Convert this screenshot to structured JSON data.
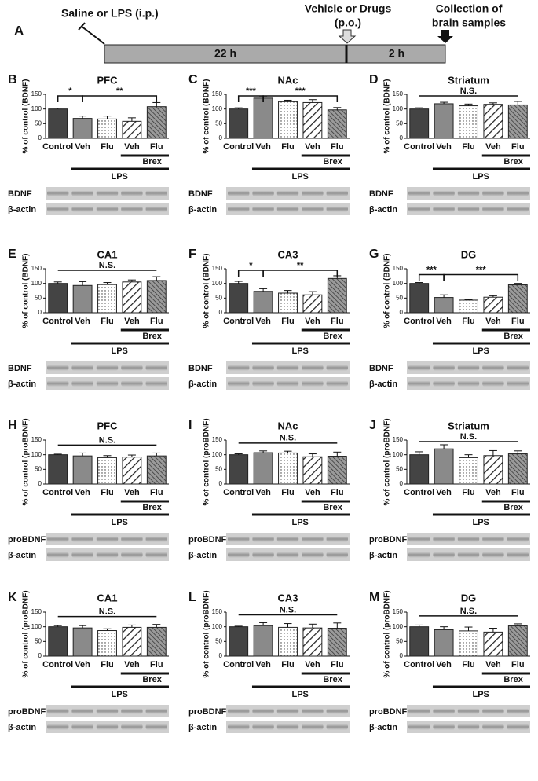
{
  "panel_a": {
    "panel": "A",
    "injection": "Saline or LPS (i.p.)",
    "drugs": [
      "Vehicle or Drugs",
      "(p.o.)"
    ],
    "collection": [
      "Collection of",
      "brain samples"
    ],
    "phase1": "22 h",
    "phase2": "2 h"
  },
  "chart_data": [
    {
      "type": "bar",
      "panel": "B",
      "title": "PFC",
      "y_label": "% of control (BDNF)",
      "categories": [
        "Control",
        "Veh",
        "Flu",
        "Veh",
        "Flu"
      ],
      "values": [
        100,
        68,
        66,
        58,
        108
      ],
      "errors": [
        3,
        8,
        10,
        12,
        14
      ],
      "ylim": [
        0,
        150
      ],
      "yticks": [
        0,
        50,
        100,
        150
      ],
      "annotations": [
        "*",
        "**"
      ],
      "groups": [
        "LPS",
        "Brex"
      ],
      "blots": [
        "BDNF",
        "β-actin"
      ],
      "bar_colors": [
        "#444444",
        "#8a8a8a",
        "#ffffff",
        "#ffffff",
        "#9a9a9a"
      ],
      "bar_patterns": [
        "solid",
        "solid",
        "dots",
        "hatch",
        "dense-hatch"
      ]
    },
    {
      "type": "bar",
      "panel": "C",
      "title": "NAc",
      "y_label": "% of control (BDNF)",
      "categories": [
        "Control",
        "Veh",
        "Flu",
        "Veh",
        "Flu"
      ],
      "values": [
        100,
        137,
        125,
        122,
        97
      ],
      "errors": [
        4,
        7,
        5,
        10,
        8
      ],
      "ylim": [
        0,
        150
      ],
      "yticks": [
        0,
        50,
        100,
        150
      ],
      "annotations": [
        "***",
        "***"
      ],
      "groups": [
        "LPS",
        "Brex"
      ],
      "blots": [
        "BDNF",
        "β-actin"
      ],
      "bar_colors": [
        "#444444",
        "#8a8a8a",
        "#ffffff",
        "#ffffff",
        "#9a9a9a"
      ],
      "bar_patterns": [
        "solid",
        "solid",
        "dots",
        "hatch",
        "dense-hatch"
      ]
    },
    {
      "type": "bar",
      "panel": "D",
      "title": "Striatum",
      "y_label": "% of control (BDNF)",
      "categories": [
        "Control",
        "Veh",
        "Flu",
        "Veh",
        "Flu"
      ],
      "values": [
        100,
        118,
        111,
        116,
        114
      ],
      "errors": [
        4,
        5,
        6,
        5,
        12
      ],
      "ylim": [
        0,
        150
      ],
      "yticks": [
        0,
        50,
        100,
        150
      ],
      "annotations": [
        "N.S."
      ],
      "groups": [
        "LPS",
        "Brex"
      ],
      "blots": [
        "BDNF",
        "β-actin"
      ],
      "bar_colors": [
        "#444444",
        "#8a8a8a",
        "#ffffff",
        "#ffffff",
        "#9a9a9a"
      ],
      "bar_patterns": [
        "solid",
        "solid",
        "dots",
        "hatch",
        "dense-hatch"
      ]
    },
    {
      "type": "bar",
      "panel": "E",
      "title": "CA1",
      "y_label": "% of control (BDNF)",
      "categories": [
        "Control",
        "Veh",
        "Flu",
        "Veh",
        "Flu"
      ],
      "values": [
        100,
        93,
        96,
        105,
        110
      ],
      "errors": [
        5,
        13,
        7,
        7,
        13
      ],
      "ylim": [
        0,
        150
      ],
      "yticks": [
        0,
        50,
        100,
        150
      ],
      "annotations": [
        "N.S."
      ],
      "groups": [
        "LPS",
        "Brex"
      ],
      "blots": [
        "BDNF",
        "β-actin"
      ],
      "bar_colors": [
        "#444444",
        "#8a8a8a",
        "#ffffff",
        "#ffffff",
        "#9a9a9a"
      ],
      "bar_patterns": [
        "solid",
        "solid",
        "dots",
        "hatch",
        "dense-hatch"
      ]
    },
    {
      "type": "bar",
      "panel": "F",
      "title": "CA3",
      "y_label": "% of control (BDNF)",
      "categories": [
        "Control",
        "Veh",
        "Flu",
        "Veh",
        "Flu"
      ],
      "values": [
        100,
        73,
        67,
        61,
        117
      ],
      "errors": [
        7,
        9,
        9,
        11,
        9
      ],
      "ylim": [
        0,
        150
      ],
      "yticks": [
        0,
        50,
        100,
        150
      ],
      "annotations": [
        "*",
        "**"
      ],
      "groups": [
        "LPS",
        "Brex"
      ],
      "blots": [
        "BDNF",
        "β-actin"
      ],
      "bar_colors": [
        "#444444",
        "#8a8a8a",
        "#ffffff",
        "#ffffff",
        "#9a9a9a"
      ],
      "bar_patterns": [
        "solid",
        "solid",
        "dots",
        "hatch",
        "dense-hatch"
      ]
    },
    {
      "type": "bar",
      "panel": "G",
      "title": "DG",
      "y_label": "% of control (BDNF)",
      "categories": [
        "Control",
        "Veh",
        "Flu",
        "Veh",
        "Flu"
      ],
      "values": [
        100,
        52,
        43,
        53,
        95
      ],
      "errors": [
        3,
        9,
        2,
        5,
        5
      ],
      "ylim": [
        0,
        150
      ],
      "yticks": [
        0,
        50,
        100,
        150
      ],
      "annotations": [
        "***",
        "***"
      ],
      "groups": [
        "LPS",
        "Brex"
      ],
      "blots": [
        "BDNF",
        "β-actin"
      ],
      "bar_colors": [
        "#444444",
        "#8a8a8a",
        "#ffffff",
        "#ffffff",
        "#9a9a9a"
      ],
      "bar_patterns": [
        "solid",
        "solid",
        "dots",
        "hatch",
        "dense-hatch"
      ]
    },
    {
      "type": "bar",
      "panel": "H",
      "title": "PFC",
      "y_label": "% of control (proBDNF)",
      "categories": [
        "Control",
        "Veh",
        "Flu",
        "Veh",
        "Flu"
      ],
      "values": [
        100,
        96,
        90,
        92,
        96
      ],
      "errors": [
        2,
        10,
        7,
        7,
        10
      ],
      "ylim": [
        0,
        150
      ],
      "yticks": [
        0,
        50,
        100,
        150
      ],
      "annotations": [
        "N.S."
      ],
      "groups": [
        "LPS",
        "Brex"
      ],
      "blots": [
        "proBDNF",
        "β-actin"
      ],
      "bar_colors": [
        "#444444",
        "#8a8a8a",
        "#ffffff",
        "#ffffff",
        "#9a9a9a"
      ],
      "bar_patterns": [
        "solid",
        "solid",
        "dots",
        "hatch",
        "dense-hatch"
      ]
    },
    {
      "type": "bar",
      "panel": "I",
      "title": "NAc",
      "y_label": "% of control (proBDNF)",
      "categories": [
        "Control",
        "Veh",
        "Flu",
        "Veh",
        "Flu"
      ],
      "values": [
        100,
        107,
        106,
        93,
        95
      ],
      "errors": [
        3,
        6,
        6,
        10,
        14
      ],
      "ylim": [
        0,
        150
      ],
      "yticks": [
        0,
        50,
        100,
        150
      ],
      "annotations": [
        "N.S."
      ],
      "groups": [
        "LPS",
        "Brex"
      ],
      "blots": [
        "proBDNF",
        "β-actin"
      ],
      "bar_colors": [
        "#444444",
        "#8a8a8a",
        "#ffffff",
        "#ffffff",
        "#9a9a9a"
      ],
      "bar_patterns": [
        "solid",
        "solid",
        "dots",
        "hatch",
        "dense-hatch"
      ]
    },
    {
      "type": "bar",
      "panel": "J",
      "title": "Striatum",
      "y_label": "% of control (proBDNF)",
      "categories": [
        "Control",
        "Veh",
        "Flu",
        "Veh",
        "Flu"
      ],
      "values": [
        100,
        120,
        90,
        97,
        103
      ],
      "errors": [
        10,
        14,
        10,
        17,
        10
      ],
      "ylim": [
        0,
        150
      ],
      "yticks": [
        0,
        50,
        100,
        150
      ],
      "annotations": [
        "N.S."
      ],
      "groups": [
        "LPS",
        "Brex"
      ],
      "blots": [
        "proBDNF",
        "β-actin"
      ],
      "bar_colors": [
        "#444444",
        "#8a8a8a",
        "#ffffff",
        "#ffffff",
        "#9a9a9a"
      ],
      "bar_patterns": [
        "solid",
        "solid",
        "dots",
        "hatch",
        "dense-hatch"
      ]
    },
    {
      "type": "bar",
      "panel": "K",
      "title": "CA1",
      "y_label": "% of control (proBDNF)",
      "categories": [
        "Control",
        "Veh",
        "Flu",
        "Veh",
        "Flu"
      ],
      "values": [
        100,
        96,
        87,
        98,
        98
      ],
      "errors": [
        4,
        8,
        6,
        8,
        10
      ],
      "ylim": [
        0,
        150
      ],
      "yticks": [
        0,
        50,
        100,
        150
      ],
      "annotations": [
        "N.S."
      ],
      "groups": [
        "LPS",
        "Brex"
      ],
      "blots": [
        "proBDNF",
        "β-actin"
      ],
      "bar_colors": [
        "#444444",
        "#8a8a8a",
        "#ffffff",
        "#ffffff",
        "#9a9a9a"
      ],
      "bar_patterns": [
        "solid",
        "solid",
        "dots",
        "hatch",
        "dense-hatch"
      ]
    },
    {
      "type": "bar",
      "panel": "L",
      "title": "CA3",
      "y_label": "% of control (proBDNF)",
      "categories": [
        "Control",
        "Veh",
        "Flu",
        "Veh",
        "Flu"
      ],
      "values": [
        100,
        104,
        98,
        96,
        95
      ],
      "errors": [
        2,
        10,
        13,
        13,
        18
      ],
      "ylim": [
        0,
        150
      ],
      "yticks": [
        0,
        50,
        100,
        150
      ],
      "annotations": [
        "N.S."
      ],
      "groups": [
        "LPS",
        "Brex"
      ],
      "blots": [
        "proBDNF",
        "β-actin"
      ],
      "bar_colors": [
        "#444444",
        "#8a8a8a",
        "#ffffff",
        "#ffffff",
        "#9a9a9a"
      ],
      "bar_patterns": [
        "solid",
        "solid",
        "dots",
        "hatch",
        "dense-hatch"
      ]
    },
    {
      "type": "bar",
      "panel": "M",
      "title": "DG",
      "y_label": "% of control (proBDNF)",
      "categories": [
        "Control",
        "Veh",
        "Flu",
        "Veh",
        "Flu"
      ],
      "values": [
        100,
        90,
        86,
        82,
        103
      ],
      "errors": [
        6,
        10,
        13,
        13,
        7
      ],
      "ylim": [
        0,
        150
      ],
      "yticks": [
        0,
        50,
        100,
        150
      ],
      "annotations": [
        "N.S."
      ],
      "groups": [
        "LPS",
        "Brex"
      ],
      "blots": [
        "proBDNF",
        "β-actin"
      ],
      "bar_colors": [
        "#444444",
        "#8a8a8a",
        "#ffffff",
        "#ffffff",
        "#9a9a9a"
      ],
      "bar_patterns": [
        "solid",
        "solid",
        "dots",
        "hatch",
        "dense-hatch"
      ]
    }
  ]
}
